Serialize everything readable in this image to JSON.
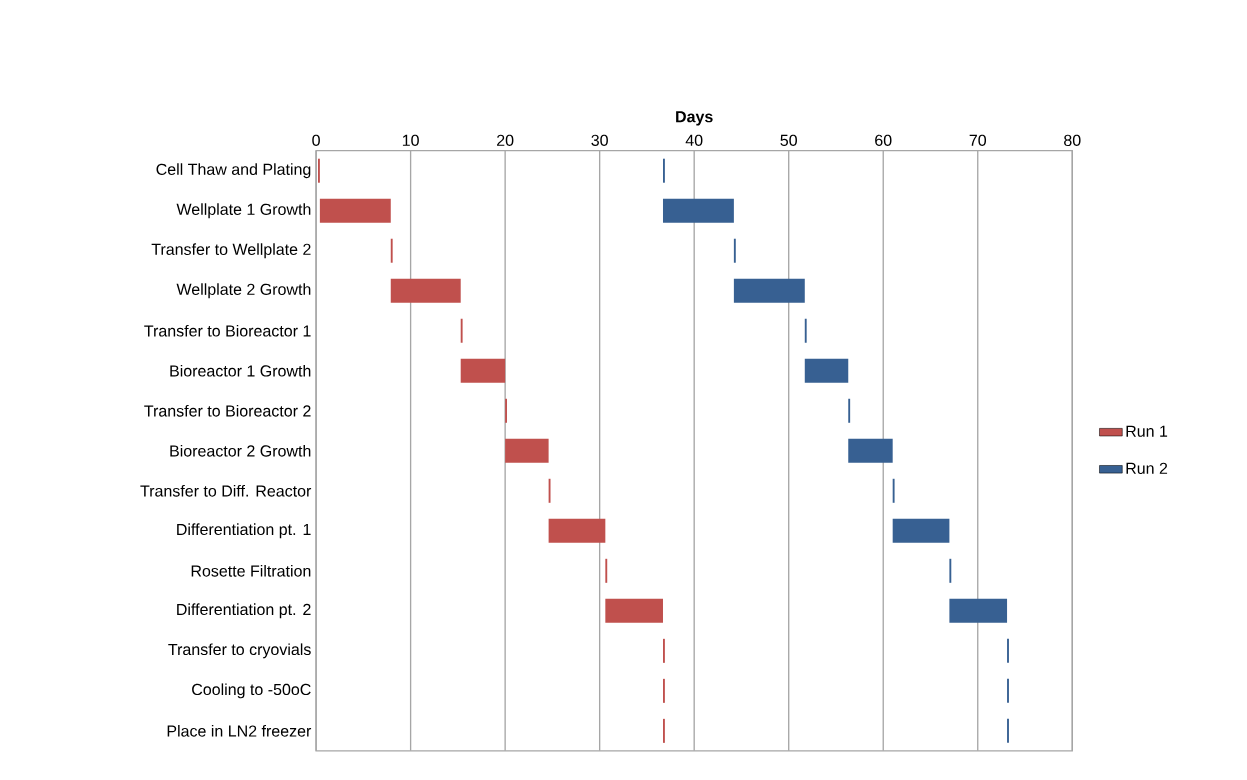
{
  "chart_data": {
    "type": "bar",
    "orientation": "horizontal",
    "xlabel": "Days",
    "categories": [
      "Cell Thaw and Plating",
      "Wellplate 1 Growth",
      "Transfer to Wellplate 2",
      "Wellplate 2 Growth",
      "Transfer to Bioreactor 1",
      "Bioreactor 1 Growth",
      "Transfer to Bioreactor 2",
      "Bioreactor 2 Growth",
      "Transfer to Diff. Reactor",
      "Differentiation pt. 1",
      "Rosette Filtration",
      "Differentiation pt. 2",
      "Transfer to cryovials",
      "Cooling to -50oC",
      "Place in LN2 freezer"
    ],
    "series": [
      {
        "name": "Run 1",
        "color": "#c0504d",
        "base": [
          0.2,
          0.4,
          7.9,
          7.9,
          15.3,
          15.3,
          20.0,
          20.0,
          24.6,
          24.6,
          30.6,
          30.6,
          36.7,
          36.7,
          36.7
        ],
        "values": [
          0.2,
          7.5,
          0.2,
          7.4,
          0.2,
          4.7,
          0.2,
          4.6,
          0.2,
          6,
          0.2,
          6.1,
          0.2,
          0.2,
          0.2
        ]
      },
      {
        "name": "Run 2",
        "color": "#376092",
        "base": [
          36.7,
          36.7,
          44.2,
          44.2,
          51.7,
          51.7,
          56.3,
          56.3,
          61,
          61,
          67,
          67,
          73.1,
          73.1,
          73.1
        ],
        "values": [
          0.2,
          7.5,
          0.2,
          7.5,
          0.2,
          4.6,
          0.2,
          4.7,
          0.2,
          6,
          0.2,
          6.1,
          0.2,
          0.2,
          0.2
        ]
      }
    ],
    "xlim": [
      0,
      80
    ],
    "xticks": [
      0,
      10,
      20,
      30,
      40,
      50,
      60,
      70,
      80
    ],
    "grid": "x",
    "legend": "right"
  }
}
